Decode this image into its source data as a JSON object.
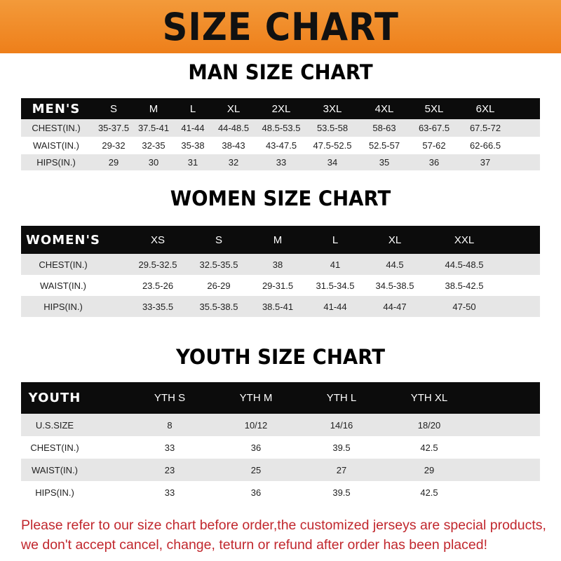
{
  "banner_title": "SIZE CHART",
  "men": {
    "title": "MAN SIZE CHART",
    "headers": [
      "MEN'S",
      "S",
      "M",
      "L",
      "XL",
      "2XL",
      "3XL",
      "4XL",
      "5XL",
      "6XL"
    ],
    "rows": [
      [
        "CHEST(IN.)",
        "35-37.5",
        "37.5-41",
        "41-44",
        "44-48.5",
        "48.5-53.5",
        "53.5-58",
        "58-63",
        "63-67.5",
        "67.5-72"
      ],
      [
        "WAIST(IN.)",
        "29-32",
        "32-35",
        "35-38",
        "38-43",
        "43-47.5",
        "47.5-52.5",
        "52.5-57",
        "57-62",
        "62-66.5"
      ],
      [
        "HIPS(IN.)",
        "29",
        "30",
        "31",
        "32",
        "33",
        "34",
        "35",
        "36",
        "37"
      ]
    ]
  },
  "women": {
    "title": "WOMEN SIZE CHART",
    "headers": [
      "WOMEN'S",
      "XS",
      "S",
      "M",
      "L",
      "XL",
      "XXL"
    ],
    "rows": [
      [
        "CHEST(IN.)",
        "29.5-32.5",
        "32.5-35.5",
        "38",
        "41",
        "44.5",
        "44.5-48.5"
      ],
      [
        "WAIST(IN.)",
        "23.5-26",
        "26-29",
        "29-31.5",
        "31.5-34.5",
        "34.5-38.5",
        "38.5-42.5"
      ],
      [
        "HIPS(IN.)",
        "33-35.5",
        "35.5-38.5",
        "38.5-41",
        "41-44",
        "44-47",
        "47-50"
      ]
    ]
  },
  "youth": {
    "title": "YOUTH SIZE CHART",
    "headers": [
      "YOUTH",
      "YTH S",
      "YTH M",
      "YTH L",
      "YTH XL"
    ],
    "rows": [
      [
        "U.S.SIZE",
        "8",
        "10/12",
        "14/16",
        "18/20"
      ],
      [
        "CHEST(IN.)",
        "33",
        "36",
        "39.5",
        "42.5"
      ],
      [
        "WAIST(IN.)",
        "23",
        "25",
        "27",
        "29"
      ],
      [
        "HIPS(IN.)",
        "33",
        "36",
        "39.5",
        "42.5"
      ]
    ]
  },
  "note": {
    "line1": "Please refer to our size chart before order,the customized jerseys are special products,",
    "line2": "we don't accept cancel, change, teturn or refund after order has been placed!"
  },
  "colors": {
    "banner": "#ee7f1a",
    "header_row": "#0c0c0c",
    "stripe": "#e6e6e6",
    "note": "#c1272d"
  }
}
